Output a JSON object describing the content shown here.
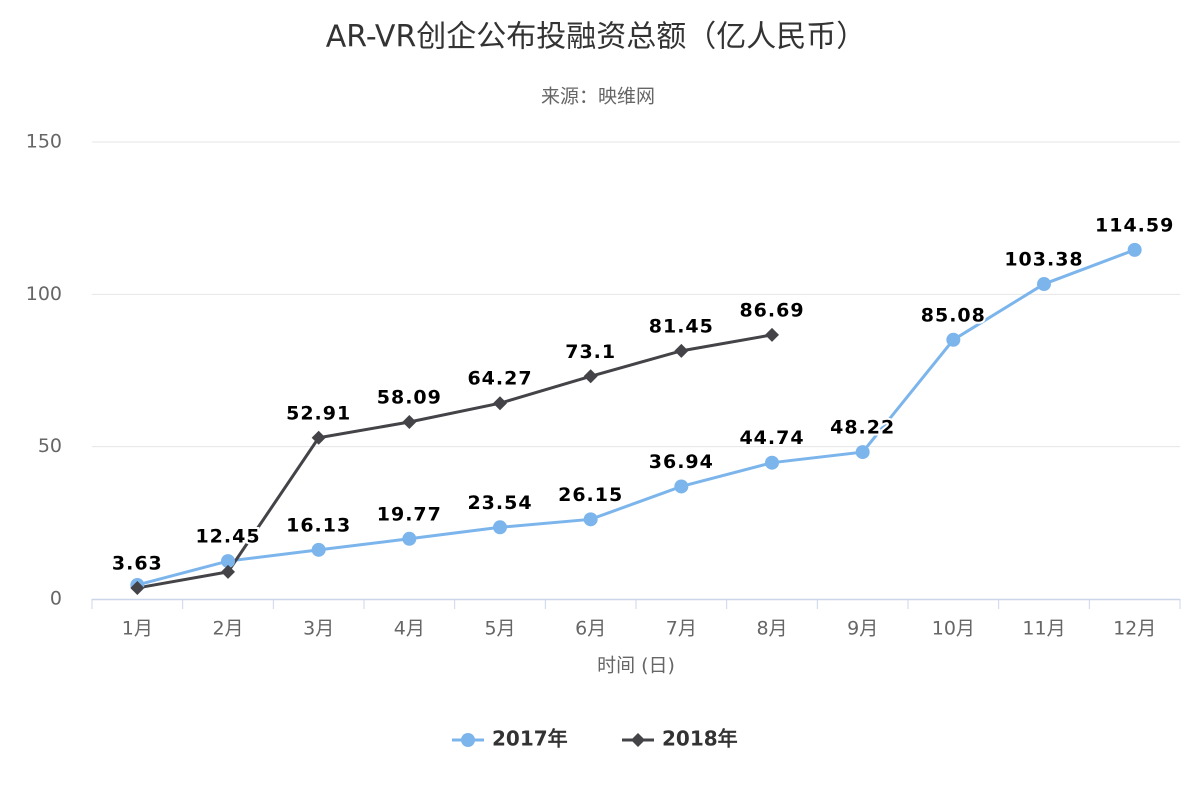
{
  "chart_data": {
    "type": "line",
    "title": "AR-VR创企公布投融资总额（亿人民币）",
    "subtitle": "来源：映维网",
    "x_label": "时间 (日)",
    "categories": [
      "1月",
      "2月",
      "3月",
      "4月",
      "5月",
      "6月",
      "7月",
      "8月",
      "9月",
      "10月",
      "11月",
      "12月"
    ],
    "series": [
      {
        "name": "2017年",
        "color": "#7cb5ec",
        "marker": "circle",
        "values": [
          4.6,
          12.45,
          16.13,
          19.77,
          23.54,
          26.15,
          36.94,
          44.74,
          48.22,
          85.08,
          103.38,
          114.59
        ],
        "value_labels": [
          null,
          "12.45",
          "16.13",
          "19.77",
          "23.54",
          "26.15",
          "36.94",
          "44.74",
          "48.22",
          "85.08",
          "103.38",
          "114.59"
        ]
      },
      {
        "name": "2018年",
        "color": "#434348",
        "marker": "diamond",
        "values": [
          3.63,
          8.9,
          52.91,
          58.09,
          64.27,
          73.1,
          81.45,
          86.69,
          null,
          null,
          null,
          null
        ],
        "value_labels": [
          "3.63",
          null,
          "52.91",
          "58.09",
          "64.27",
          "73.1",
          "81.45",
          "86.69",
          null,
          null,
          null,
          null
        ]
      }
    ],
    "ylim": [
      0,
      150
    ],
    "yticks": [
      0,
      50,
      100,
      150
    ],
    "grid": true,
    "legend": "bottom"
  }
}
